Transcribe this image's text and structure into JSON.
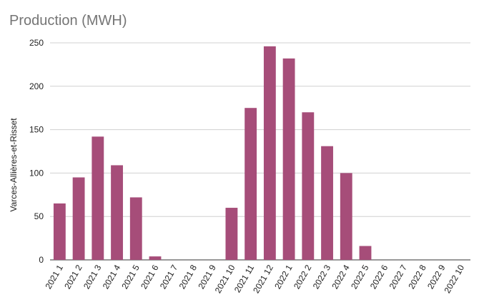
{
  "chart_data": {
    "type": "bar",
    "title": "Production (MWH)",
    "xlabel": "",
    "ylabel": "Varces-Allières-et-Risset",
    "ylim": [
      0,
      250
    ],
    "yticks": [
      0,
      50,
      100,
      150,
      200,
      250
    ],
    "grid": true,
    "color": "#a64d79",
    "categories": [
      "2021 1",
      "2021 2",
      "2021 3",
      "2021 4",
      "2021 5",
      "2021 6",
      "2021 7",
      "2021 8",
      "2021 9",
      "2021 10",
      "2021 11",
      "2021 12",
      "2022 1",
      "2022 2",
      "2022 3",
      "2022 4",
      "2022 5",
      "2022 6",
      "2022 7",
      "2022 8",
      "2022 9",
      "2022 10"
    ],
    "values": [
      65,
      95,
      142,
      109,
      72,
      4,
      0,
      0,
      0,
      60,
      175,
      246,
      232,
      170,
      131,
      100,
      16,
      0,
      0,
      0,
      0,
      0
    ]
  }
}
